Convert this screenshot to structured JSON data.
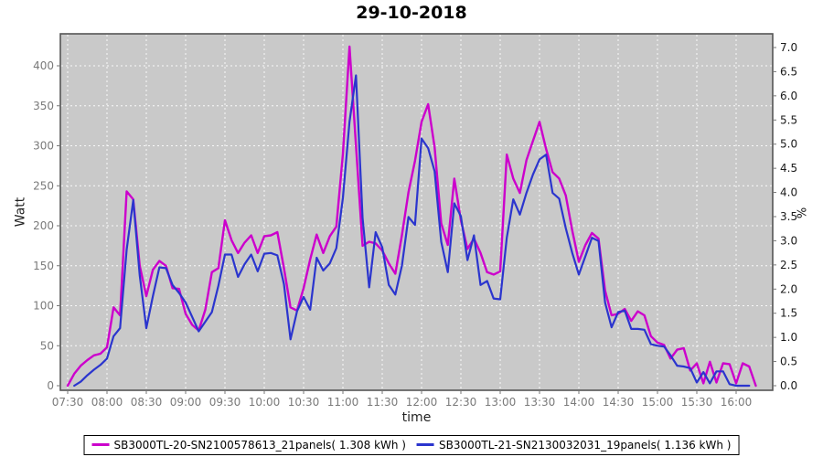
{
  "title": "29-10-2018",
  "chart_data": {
    "type": "line",
    "title": "29-10-2018",
    "xlabel": "time",
    "ylabel_left": "Watt",
    "ylabel_right": "%",
    "grid": true,
    "legend_position": "bottom",
    "plot_bg": "#C9C9C9",
    "grid_color": "#FFFFFF",
    "border_color": "#555555",
    "tick_label_color": "#7a7a7a",
    "right_tick_label_color": "#1a1a1a",
    "time_start": "07:30",
    "time_step_minutes": 5,
    "x_ticks": [
      "07:30",
      "08:00",
      "08:30",
      "09:00",
      "09:30",
      "10:00",
      "10:30",
      "11:00",
      "11:30",
      "12:00",
      "12:30",
      "13:00",
      "13:30",
      "14:00",
      "14:30",
      "15:00",
      "15:30",
      "16:00"
    ],
    "y_left_ticks": [
      "0",
      "50",
      "100",
      "150",
      "200",
      "250",
      "300",
      "350",
      "400"
    ],
    "y_right_ticks": [
      "0.0",
      "0.5",
      "1.0",
      "1.5",
      "2.0",
      "2.5",
      "3.0",
      "3.5",
      "4.0",
      "4.5",
      "5.0",
      "5.5",
      "6.0",
      "6.5",
      "7.0"
    ],
    "ylim_left": [
      0,
      440
    ],
    "series": [
      {
        "name": "SB3000TL-20-SN2100578613_21panels( 1.308 kWh )",
        "color": "#CC00CC",
        "values": [
          0,
          15,
          25,
          32,
          38,
          40,
          48,
          98,
          88,
          243,
          233,
          150,
          112,
          145,
          156,
          150,
          122,
          121,
          90,
          76,
          69,
          95,
          142,
          147,
          207,
          182,
          166,
          179,
          188,
          166,
          187,
          188,
          192,
          147,
          98,
          94,
          122,
          158,
          189,
          166,
          187,
          199,
          290,
          424,
          300,
          175,
          180,
          178,
          169,
          153,
          140,
          188,
          242,
          281,
          330,
          352,
          298,
          203,
          176,
          259,
          207,
          171,
          184,
          166,
          142,
          139,
          143,
          289,
          259,
          241,
          282,
          306,
          330,
          296,
          267,
          259,
          238,
          194,
          155,
          176,
          191,
          184,
          119,
          88,
          90,
          96,
          81,
          93,
          88,
          62,
          54,
          51,
          34,
          45,
          47,
          19,
          28,
          3,
          30,
          4,
          28,
          27,
          3,
          28,
          24,
          0
        ]
      },
      {
        "name": "SB3000TL-21-SN2130032031_19panels( 1.136 kWh )",
        "color": "#2B35CE",
        "values": [
          null,
          0,
          5,
          13,
          20,
          26,
          34,
          62,
          72,
          170,
          232,
          138,
          72,
          112,
          148,
          147,
          126,
          116,
          104,
          86,
          68,
          80,
          92,
          125,
          164,
          164,
          136,
          152,
          164,
          143,
          165,
          166,
          163,
          127,
          58,
          93,
          111,
          95,
          160,
          144,
          153,
          172,
          235,
          330,
          388,
          210,
          123,
          192,
          173,
          126,
          114,
          150,
          211,
          201,
          309,
          297,
          268,
          180,
          142,
          228,
          212,
          157,
          188,
          126,
          131,
          109,
          108,
          185,
          233,
          214,
          241,
          264,
          283,
          289,
          241,
          234,
          197,
          166,
          139,
          162,
          185,
          181,
          104,
          73,
          92,
          94,
          71,
          71,
          70,
          52,
          50,
          49,
          38,
          25,
          24,
          22,
          4,
          17,
          3,
          18,
          18,
          2,
          0,
          0,
          0,
          null
        ]
      }
    ]
  }
}
